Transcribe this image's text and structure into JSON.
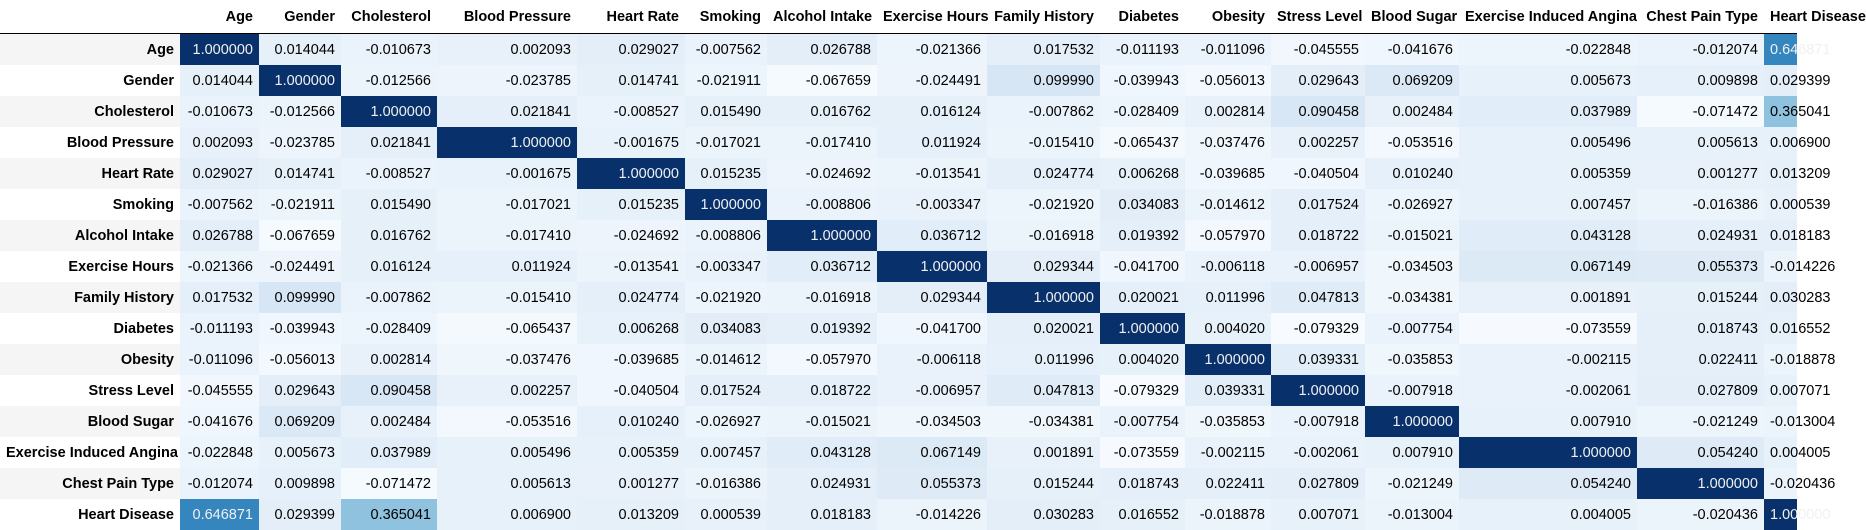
{
  "chart_data": {
    "type": "heatmap",
    "colormap": "Blues",
    "value_range": [
      -0.08,
      1.0
    ],
    "rows": [
      "Age",
      "Gender",
      "Cholesterol",
      "Blood Pressure",
      "Heart Rate",
      "Smoking",
      "Alcohol Intake",
      "Exercise Hours",
      "Family History",
      "Diabetes",
      "Obesity",
      "Stress Level",
      "Blood Sugar",
      "Exercise Induced Angina",
      "Chest Pain Type",
      "Heart Disease"
    ],
    "columns": [
      "Age",
      "Gender",
      "Cholesterol",
      "Blood Pressure",
      "Heart Rate",
      "Smoking",
      "Alcohol Intake",
      "Exercise Hours",
      "Family History",
      "Diabetes",
      "Obesity",
      "Stress Level",
      "Blood Sugar",
      "Exercise Induced Angina",
      "Chest Pain Type",
      "Heart Disease"
    ],
    "values": [
      [
        "1.000000",
        "0.014044",
        "-0.010673",
        "0.002093",
        "0.029027",
        "-0.007562",
        "0.026788",
        "-0.021366",
        "0.017532",
        "-0.011193",
        "-0.011096",
        "-0.045555",
        "-0.041676",
        "-0.022848",
        "-0.012074",
        "0.646871"
      ],
      [
        "0.014044",
        "1.000000",
        "-0.012566",
        "-0.023785",
        "0.014741",
        "-0.021911",
        "-0.067659",
        "-0.024491",
        "0.099990",
        "-0.039943",
        "-0.056013",
        "0.029643",
        "0.069209",
        "0.005673",
        "0.009898",
        "0.029399"
      ],
      [
        "-0.010673",
        "-0.012566",
        "1.000000",
        "0.021841",
        "-0.008527",
        "0.015490",
        "0.016762",
        "0.016124",
        "-0.007862",
        "-0.028409",
        "0.002814",
        "0.090458",
        "0.002484",
        "0.037989",
        "-0.071472",
        "0.365041"
      ],
      [
        "0.002093",
        "-0.023785",
        "0.021841",
        "1.000000",
        "-0.001675",
        "-0.017021",
        "-0.017410",
        "0.011924",
        "-0.015410",
        "-0.065437",
        "-0.037476",
        "0.002257",
        "-0.053516",
        "0.005496",
        "0.005613",
        "0.006900"
      ],
      [
        "0.029027",
        "0.014741",
        "-0.008527",
        "-0.001675",
        "1.000000",
        "0.015235",
        "-0.024692",
        "-0.013541",
        "0.024774",
        "0.006268",
        "-0.039685",
        "-0.040504",
        "0.010240",
        "0.005359",
        "0.001277",
        "0.013209"
      ],
      [
        "-0.007562",
        "-0.021911",
        "0.015490",
        "-0.017021",
        "0.015235",
        "1.000000",
        "-0.008806",
        "-0.003347",
        "-0.021920",
        "0.034083",
        "-0.014612",
        "0.017524",
        "-0.026927",
        "0.007457",
        "-0.016386",
        "0.000539"
      ],
      [
        "0.026788",
        "-0.067659",
        "0.016762",
        "-0.017410",
        "-0.024692",
        "-0.008806",
        "1.000000",
        "0.036712",
        "-0.016918",
        "0.019392",
        "-0.057970",
        "0.018722",
        "-0.015021",
        "0.043128",
        "0.024931",
        "0.018183"
      ],
      [
        "-0.021366",
        "-0.024491",
        "0.016124",
        "0.011924",
        "-0.013541",
        "-0.003347",
        "0.036712",
        "1.000000",
        "0.029344",
        "-0.041700",
        "-0.006118",
        "-0.006957",
        "-0.034503",
        "0.067149",
        "0.055373",
        "-0.014226"
      ],
      [
        "0.017532",
        "0.099990",
        "-0.007862",
        "-0.015410",
        "0.024774",
        "-0.021920",
        "-0.016918",
        "0.029344",
        "1.000000",
        "0.020021",
        "0.011996",
        "0.047813",
        "-0.034381",
        "0.001891",
        "0.015244",
        "0.030283"
      ],
      [
        "-0.011193",
        "-0.039943",
        "-0.028409",
        "-0.065437",
        "0.006268",
        "0.034083",
        "0.019392",
        "-0.041700",
        "0.020021",
        "1.000000",
        "0.004020",
        "-0.079329",
        "-0.007754",
        "-0.073559",
        "0.018743",
        "0.016552"
      ],
      [
        "-0.011096",
        "-0.056013",
        "0.002814",
        "-0.037476",
        "-0.039685",
        "-0.014612",
        "-0.057970",
        "-0.006118",
        "0.011996",
        "0.004020",
        "1.000000",
        "0.039331",
        "-0.035853",
        "-0.002115",
        "0.022411",
        "-0.018878"
      ],
      [
        "-0.045555",
        "0.029643",
        "0.090458",
        "0.002257",
        "-0.040504",
        "0.017524",
        "0.018722",
        "-0.006957",
        "0.047813",
        "-0.079329",
        "0.039331",
        "1.000000",
        "-0.007918",
        "-0.002061",
        "0.027809",
        "0.007071"
      ],
      [
        "-0.041676",
        "0.069209",
        "0.002484",
        "-0.053516",
        "0.010240",
        "-0.026927",
        "-0.015021",
        "-0.034503",
        "-0.034381",
        "-0.007754",
        "-0.035853",
        "-0.007918",
        "1.000000",
        "0.007910",
        "-0.021249",
        "-0.013004"
      ],
      [
        "-0.022848",
        "0.005673",
        "0.037989",
        "0.005496",
        "0.005359",
        "0.007457",
        "0.043128",
        "0.067149",
        "0.001891",
        "-0.073559",
        "-0.002115",
        "-0.002061",
        "0.007910",
        "1.000000",
        "0.054240",
        "0.004005"
      ],
      [
        "-0.012074",
        "0.009898",
        "-0.071472",
        "0.005613",
        "0.001277",
        "-0.016386",
        "0.024931",
        "0.055373",
        "0.015244",
        "0.018743",
        "0.022411",
        "0.027809",
        "-0.021249",
        "0.054240",
        "1.000000",
        "-0.020436"
      ],
      [
        "0.646871",
        "0.029399",
        "0.365041",
        "0.006900",
        "0.013209",
        "0.000539",
        "0.018183",
        "-0.014226",
        "0.030283",
        "0.016552",
        "-0.018878",
        "0.007071",
        "-0.013004",
        "0.004005",
        "-0.020436",
        "1.000000"
      ]
    ]
  }
}
